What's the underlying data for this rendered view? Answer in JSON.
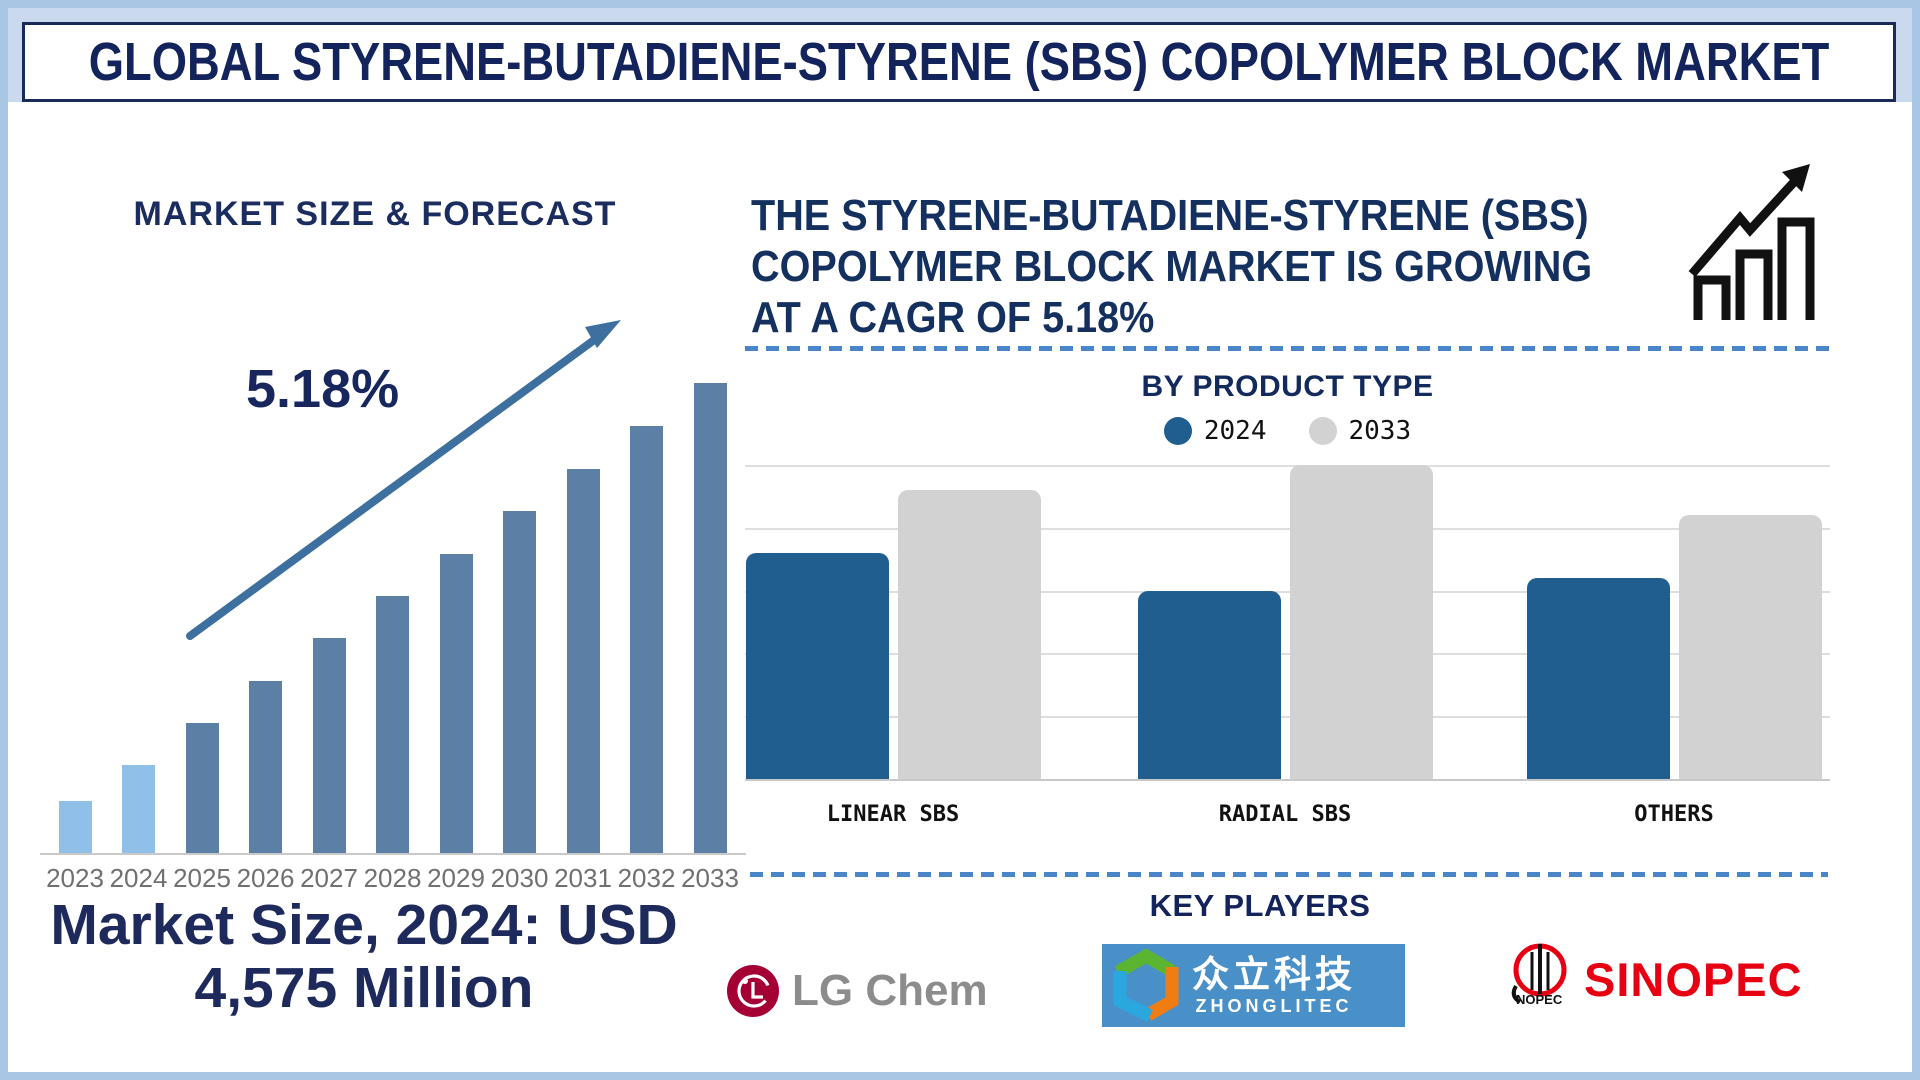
{
  "frame": {
    "title": "GLOBAL STYRENE-BUTADIENE-STYRENE (SBS) COPOLYMER BLOCK MARKET"
  },
  "left_panel": {
    "heading": "MARKET SIZE & FORECAST",
    "cagr_label": "5.18%",
    "footer_line1": "Market Size, 2024: USD",
    "footer_line2": "4,575 Million"
  },
  "right_panel": {
    "headline_line1": "THE STYRENE-BUTADIENE-STYRENE (SBS)",
    "headline_line2": "COPOLYMER BLOCK MARKET IS GROWING",
    "headline_line3": "AT A CAGR OF 5.18%",
    "product_heading": "BY PRODUCT TYPE",
    "players_heading": "KEY PLAYERS",
    "players": {
      "lgchem": {
        "name": "LG Chem"
      },
      "zhonglitec": {
        "name_cn": "众立科技",
        "name_en": "ZHONGLITEC"
      },
      "sinopec": {
        "name": "SINOPEC"
      }
    }
  },
  "chart_data": [
    {
      "type": "bar",
      "title": "MARKET SIZE & FORECAST",
      "categories": [
        "2023",
        "2024",
        "2025",
        "2026",
        "2027",
        "2028",
        "2029",
        "2030",
        "2031",
        "2032",
        "2033"
      ],
      "values_relative_pct": [
        11,
        18.7,
        27.7,
        36.6,
        45.7,
        54.7,
        63.6,
        72.8,
        81.7,
        90.9,
        100
      ],
      "labeled_point": {
        "year": "2024",
        "value_usd_million": 4575
      },
      "cagr_pct": 5.18,
      "highlight_color": "#90bfe8",
      "highlight_years": [
        "2023",
        "2024"
      ],
      "bar_color": "#5b7fa5",
      "grid": false,
      "note": "bar values unlabeled in source; relative heights estimated from pixels, only 2024 = USD 4,575 Million is labeled"
    },
    {
      "type": "bar",
      "title": "BY PRODUCT TYPE",
      "categories": [
        "LINEAR SBS",
        "RADIAL SBS",
        "OTHERS"
      ],
      "series": [
        {
          "name": "2024",
          "color": "#1f5e8f",
          "values": [
            3.6,
            3.0,
            3.2
          ]
        },
        {
          "name": "2033",
          "color": "#d2d2d2",
          "values": [
            4.6,
            5.0,
            4.2
          ]
        }
      ],
      "ylim": [
        0,
        5
      ],
      "grid": true,
      "legend_position": "top",
      "note": "no y-axis tick labels shown; values estimated in gridline units"
    }
  ],
  "colors": {
    "navy_text": "#16275c",
    "arrow_blue": "#3d6f9f",
    "dashed_divider": "#4a85c9",
    "top_band": "#cbd9ee",
    "outer_frame": "#a9c6e5",
    "lg_red": "#a50034",
    "lg_gray_text": "#8c8c8c",
    "zhonglitec_bg": "#4a90c8",
    "sinopec_red": "#e60012",
    "year_label_gray": "#6f7070"
  }
}
